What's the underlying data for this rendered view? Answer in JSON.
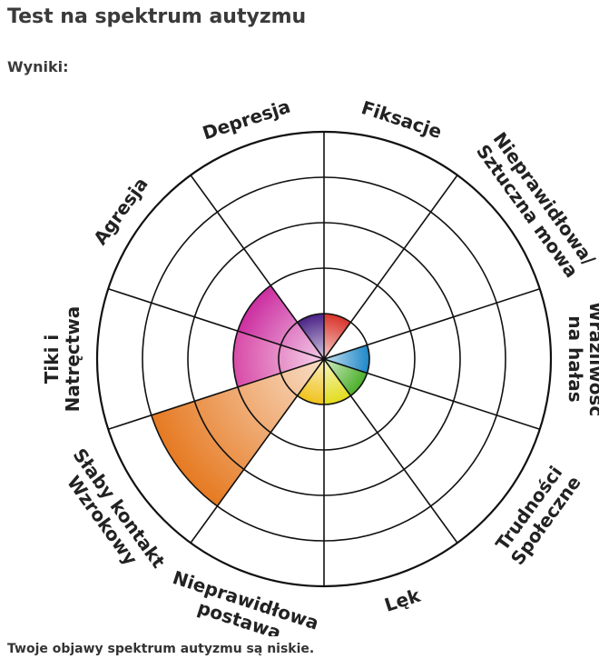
{
  "page": {
    "title": "Test na spektrum autyzmu",
    "results_label": "Wyniki:",
    "result_text": "Twoje objawy spektrum autyzmu są niskie."
  },
  "chart_data": {
    "type": "polar_area",
    "title": "",
    "rings": 5,
    "max": 5,
    "categories": [
      "Fiksacje",
      "Nieprawidłowa/Sztuczna mowa",
      "Wrażliwość na hałas",
      "Trudności Społeczne",
      "Lęk",
      "Nieprawidłowa postawa",
      "Słaby kontakt Wzrokowy",
      "Tiki i Natręctwa",
      "Agresja",
      "Depresja"
    ],
    "label_lines": [
      [
        "Fiksacje"
      ],
      [
        "Nieprawidłowa/",
        "Sztuczna mowa"
      ],
      [
        "Wrażliwość",
        "na hałas"
      ],
      [
        "Trudności",
        "Społeczne"
      ],
      [
        "Lęk"
      ],
      [
        "Nieprawidłowa",
        "postawa"
      ],
      [
        "Słaby kontakt",
        "Wzrokowy"
      ],
      [
        "Tiki i",
        "Natręctwa"
      ],
      [
        "Agresja"
      ],
      [
        "Depresja"
      ]
    ],
    "values": [
      1,
      0,
      1,
      1,
      1,
      1,
      4,
      2,
      2,
      1
    ],
    "colors": [
      "#d9342b",
      "#f2c300",
      "#1e88c8",
      "#4caf2a",
      "#e2dc1c",
      "#f0c21a",
      "#e67a22",
      "#d84ba8",
      "#cc2ea0",
      "#4b2387"
    ]
  }
}
